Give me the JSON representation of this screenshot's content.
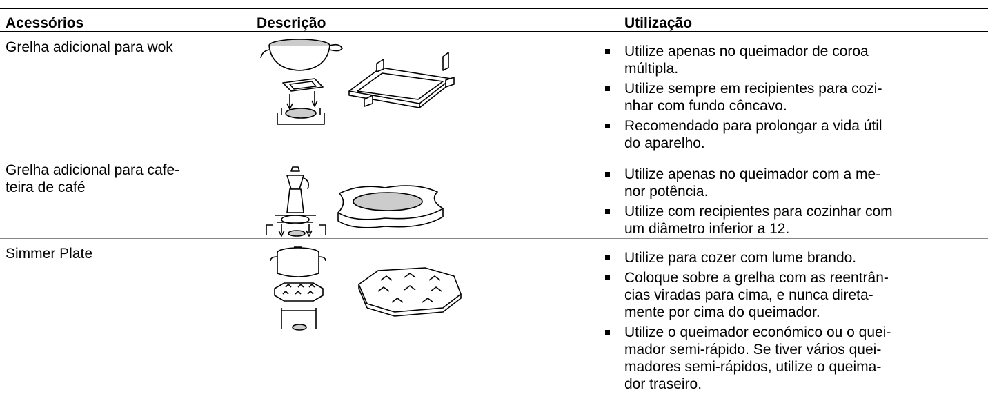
{
  "header": {
    "columns": [
      "Acessórios",
      "Descrição",
      "Utilização"
    ]
  },
  "rows": [
    {
      "accessory": "Grelha adicional para wok",
      "usage": [
        [
          "Utilize apenas no queimador de coroa",
          "múltipla."
        ],
        [
          "Utilize sempre em recipientes para cozi-",
          "nhar com fundo côncavo."
        ],
        [
          "Recomendado para prolongar a vida útil",
          "do aparelho."
        ]
      ]
    },
    {
      "accessory": [
        "Grelha adicional para cafe-",
        "teira de café"
      ],
      "usage": [
        [
          "Utilize apenas no queimador com a me-",
          "nor potência."
        ],
        [
          "Utilize com recipientes para cozinhar com",
          "um diâmetro inferior a 12."
        ]
      ]
    },
    {
      "accessory": "Simmer Plate",
      "usage": [
        [
          "Utilize para cozer com lume brando."
        ],
        [
          "Coloque sobre a grelha com as reentrân-",
          "cias viradas para cima, e nunca direta-",
          "mente por cima do queimador."
        ],
        [
          "Utilize o queimador económico ou o quei-",
          "mador semi-rápido. Se tiver vários quei-",
          "madores semi-rápidos, utilize o queima-",
          "dor traseiro."
        ]
      ]
    }
  ]
}
